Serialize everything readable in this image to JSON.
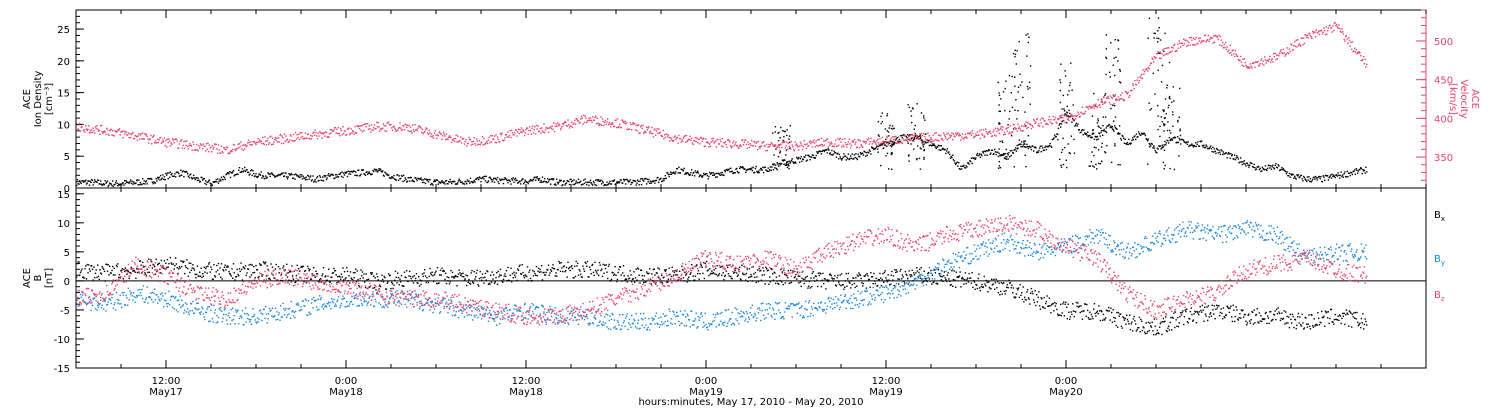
{
  "chart_data": [
    {
      "type": "scatter",
      "panel": "top",
      "left_axis_label": [
        "ACE",
        "Ion Density",
        "[cm⁻³]"
      ],
      "right_axis_label": [
        "ACE",
        "Velocity",
        "[km/s]"
      ],
      "left_ylim": [
        0,
        28
      ],
      "left_ticks": [
        0,
        5,
        10,
        15,
        20,
        25
      ],
      "right_ylim": [
        310,
        540
      ],
      "right_ticks": [
        350,
        400,
        450,
        500
      ],
      "right_axis_color": "#e8436a",
      "series": [
        {
          "axis": "left",
          "color": "#000000",
          "x_hours": [
            0,
            1,
            2,
            3,
            4,
            5,
            6,
            7,
            8,
            9,
            10,
            11,
            12,
            13,
            14,
            15,
            16,
            17,
            18,
            19,
            20,
            21,
            22,
            23,
            24,
            25,
            26,
            27,
            28,
            29,
            30,
            31,
            32,
            33,
            34,
            35,
            36,
            37,
            38,
            39,
            40,
            41,
            42,
            43,
            44,
            45,
            46,
            47,
            48,
            49,
            50,
            51,
            52,
            53,
            54,
            55,
            56,
            57,
            58,
            59,
            60,
            61,
            62,
            63,
            64,
            65,
            66,
            67,
            68,
            69,
            70,
            71,
            72,
            73,
            74,
            75,
            76,
            77,
            78,
            79,
            80,
            81,
            82,
            83,
            84,
            85,
            86
          ],
          "values": [
            1,
            1,
            0.8,
            0.8,
            1,
            1.2,
            2,
            2.5,
            1.5,
            0.8,
            2,
            3,
            2.2,
            2,
            2,
            1.8,
            1.5,
            2,
            2.3,
            2.5,
            2.8,
            2,
            1.5,
            1.2,
            1,
            1,
            1.2,
            1.5,
            1.3,
            1.2,
            1.2,
            1.5,
            1,
            1,
            1,
            1,
            1,
            1,
            1.2,
            1.5,
            3,
            2.5,
            2,
            2.5,
            3,
            3,
            3,
            4,
            4.5,
            5,
            6,
            5,
            5,
            6,
            7,
            8,
            8,
            7,
            6,
            3,
            5,
            6,
            5,
            7,
            6,
            7,
            12,
            9,
            8,
            10,
            7,
            9,
            6,
            8,
            7,
            7,
            6,
            5,
            4,
            3,
            3.5,
            2,
            1.5,
            1.5,
            2,
            2.5,
            3
          ],
          "spikes": [
            [
              47,
              10
            ],
            [
              54,
              12
            ],
            [
              56,
              14
            ],
            [
              62,
              18
            ],
            [
              63,
              25
            ],
            [
              66,
              20
            ],
            [
              68,
              15
            ],
            [
              69,
              25
            ],
            [
              72,
              27
            ],
            [
              73,
              20
            ]
          ]
        },
        {
          "axis": "right",
          "color": "#e8436a",
          "x_hours": [
            0,
            2,
            4,
            6,
            8,
            10,
            12,
            14,
            16,
            18,
            20,
            22,
            24,
            26,
            28,
            30,
            32,
            34,
            36,
            38,
            40,
            42,
            44,
            46,
            48,
            50,
            52,
            54,
            56,
            58,
            60,
            62,
            64,
            66,
            68,
            70,
            72,
            74,
            76,
            78,
            80,
            82,
            84,
            86
          ],
          "values": [
            390,
            385,
            378,
            370,
            365,
            360,
            370,
            375,
            380,
            385,
            390,
            390,
            380,
            370,
            375,
            385,
            390,
            400,
            395,
            385,
            375,
            370,
            368,
            365,
            365,
            370,
            368,
            372,
            375,
            378,
            380,
            385,
            395,
            400,
            420,
            430,
            480,
            500,
            505,
            470,
            480,
            505,
            520,
            470
          ]
        }
      ]
    },
    {
      "type": "scatter",
      "panel": "bottom",
      "left_axis_label": [
        "ACE",
        "B",
        "[nT]"
      ],
      "left_ylim": [
        -15,
        16
      ],
      "left_ticks": [
        -15,
        -10,
        -5,
        0,
        5,
        10,
        15
      ],
      "legend": [
        {
          "name": "Bx",
          "base": "B",
          "sub": "x",
          "color": "#000000"
        },
        {
          "name": "By",
          "base": "B",
          "sub": "y",
          "color": "#1a86d8"
        },
        {
          "name": "Bz",
          "base": "B",
          "sub": "z",
          "color": "#e8436a"
        }
      ],
      "series": [
        {
          "name": "Bx",
          "color": "#000000",
          "x_hours": [
            0,
            2,
            4,
            6,
            8,
            10,
            12,
            14,
            16,
            18,
            20,
            22,
            24,
            26,
            28,
            30,
            32,
            34,
            36,
            38,
            40,
            42,
            44,
            46,
            48,
            50,
            52,
            54,
            56,
            58,
            60,
            62,
            64,
            66,
            68,
            70,
            72,
            74,
            76,
            78,
            80,
            82,
            84,
            86
          ],
          "values": [
            2,
            1.5,
            2,
            3,
            2,
            1.5,
            2,
            1.5,
            1,
            1,
            0,
            0.5,
            1,
            0.5,
            1,
            1.5,
            2,
            2,
            1.5,
            1,
            1,
            2,
            1.5,
            1,
            0.5,
            0,
            0,
            0.5,
            1,
            0.5,
            0,
            -1,
            -3,
            -5,
            -5,
            -7,
            -8,
            -6,
            -5,
            -6,
            -6,
            -7,
            -6,
            -7
          ]
        },
        {
          "name": "By",
          "color": "#1a86d8",
          "x_hours": [
            0,
            2,
            4,
            6,
            8,
            10,
            12,
            14,
            16,
            18,
            20,
            22,
            24,
            26,
            28,
            30,
            32,
            34,
            36,
            38,
            40,
            42,
            44,
            46,
            48,
            50,
            52,
            54,
            56,
            58,
            60,
            62,
            64,
            66,
            68,
            70,
            72,
            74,
            76,
            78,
            80,
            82,
            84,
            86
          ],
          "values": [
            -3,
            -4,
            -2,
            -3,
            -5,
            -6,
            -6,
            -5,
            -4,
            -3,
            -3,
            -3,
            -4,
            -5,
            -6,
            -5,
            -6,
            -6,
            -7,
            -7,
            -6,
            -7,
            -6,
            -5,
            -5,
            -4,
            -3,
            -2,
            0,
            3,
            5,
            7,
            5,
            6,
            8,
            5,
            7,
            9,
            8,
            9,
            8,
            4,
            5,
            5
          ]
        },
        {
          "name": "Bz",
          "color": "#e8436a",
          "x_hours": [
            0,
            2,
            4,
            6,
            8,
            10,
            12,
            14,
            16,
            18,
            20,
            22,
            24,
            26,
            28,
            30,
            32,
            34,
            36,
            38,
            40,
            42,
            44,
            46,
            48,
            50,
            52,
            54,
            56,
            58,
            60,
            62,
            64,
            66,
            68,
            70,
            72,
            74,
            76,
            78,
            80,
            82,
            84,
            86
          ],
          "values": [
            -3,
            -2,
            3,
            1,
            -2,
            -3,
            0,
            1,
            0,
            -1,
            -2,
            -3,
            -3,
            -4,
            -5,
            -6,
            -6,
            -5,
            -3,
            -1,
            1,
            4,
            3,
            4,
            2,
            5,
            7,
            8,
            6,
            8,
            9,
            10,
            9,
            6,
            4,
            -2,
            -5,
            -3,
            -2,
            2,
            3,
            4,
            2,
            1
          ]
        }
      ]
    }
  ],
  "x_axis": {
    "range_hours": [
      0,
      90
    ],
    "ticks": [
      {
        "hour": 6,
        "time": "12:00",
        "day": "May17"
      },
      {
        "hour": 18,
        "time": "0:00",
        "day": "May18"
      },
      {
        "hour": 30,
        "time": "12:00",
        "day": "May18"
      },
      {
        "hour": 42,
        "time": "0:00",
        "day": "May19"
      },
      {
        "hour": 54,
        "time": "12:00",
        "day": "May19"
      },
      {
        "hour": 66,
        "time": "0:00",
        "day": "May20"
      }
    ],
    "title": "hours:minutes, May 17, 2010 - May 20, 2010"
  }
}
